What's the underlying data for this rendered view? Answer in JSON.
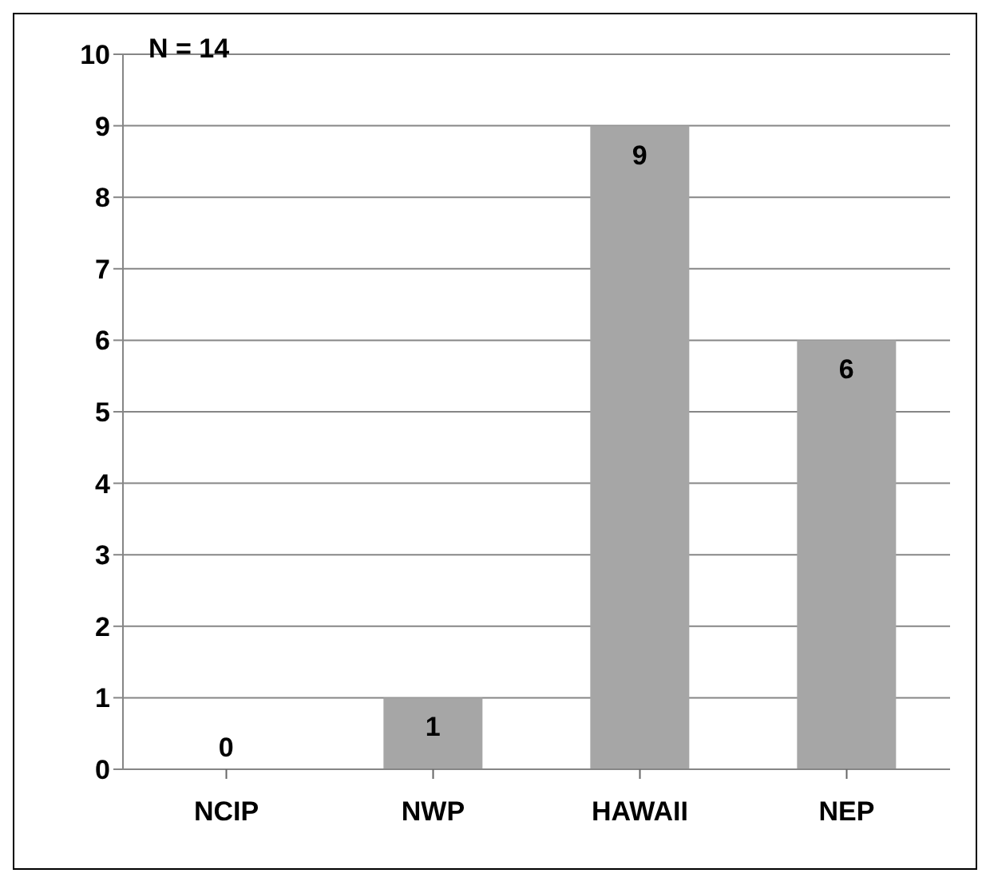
{
  "chart_data": {
    "type": "bar",
    "categories": [
      "NCIP",
      "NWP",
      "HAWAII",
      "NEP"
    ],
    "values": [
      0,
      1,
      9,
      6
    ],
    "color": "#a6a6a6",
    "ylim": [
      0,
      10
    ],
    "yticks": [
      0,
      1,
      2,
      3,
      4,
      5,
      6,
      7,
      8,
      9,
      10
    ],
    "grid": "y",
    "data_labels": true,
    "annotations": [
      "N = 14"
    ]
  }
}
